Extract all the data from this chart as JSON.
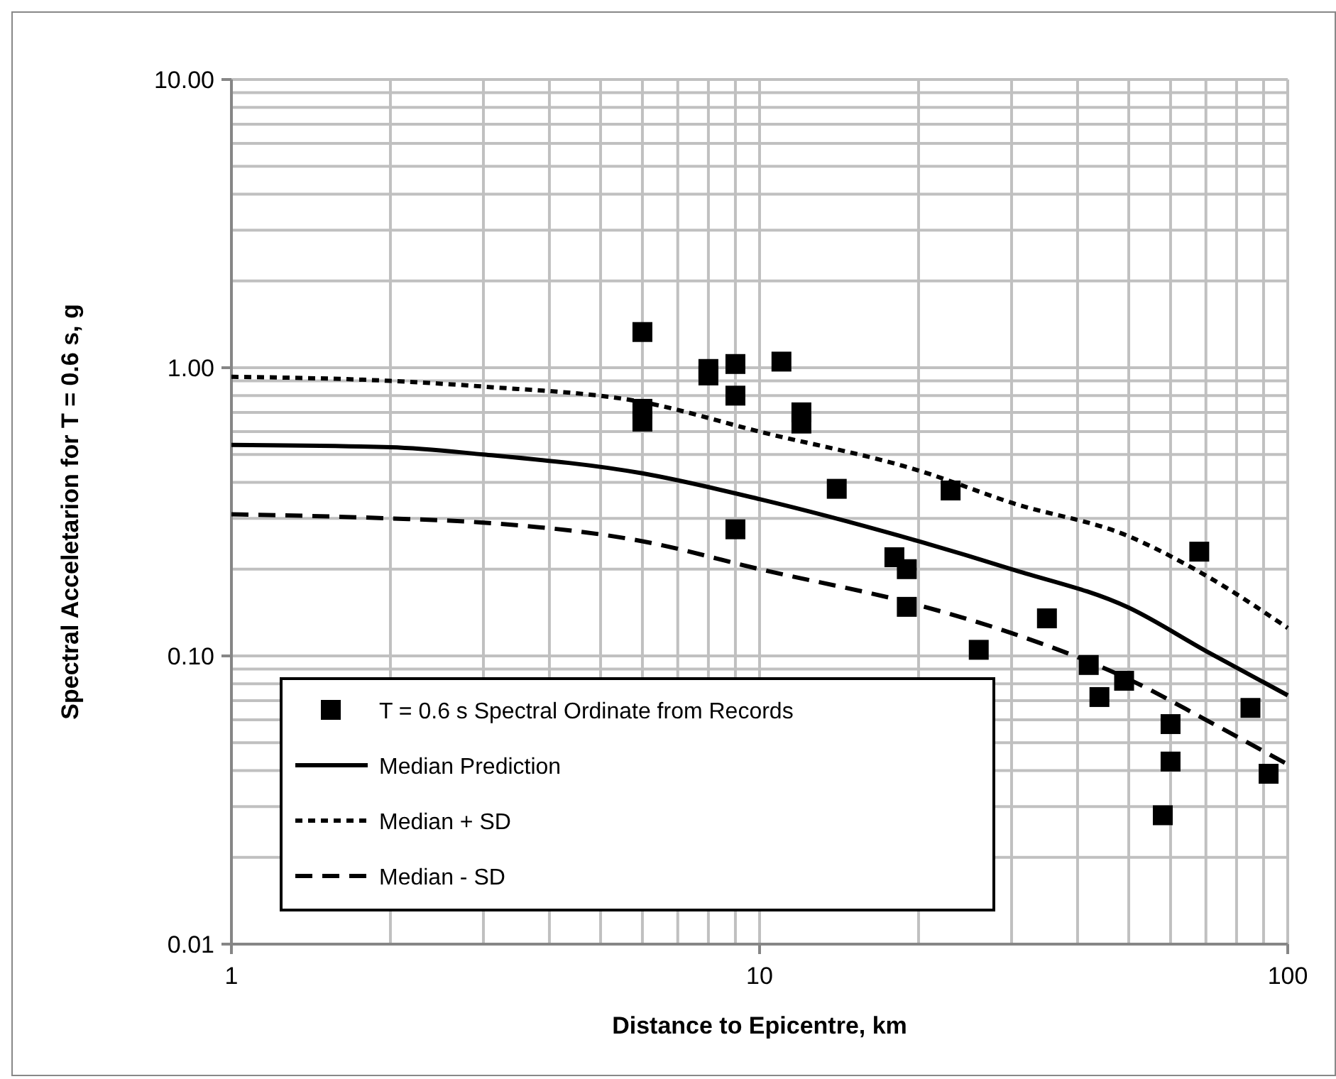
{
  "chart_data": {
    "type": "scatter",
    "xlabel": "Distance to Epicentre, km",
    "ylabel": "Spectral Acceletarion for T = 0.6 s, g",
    "log": "xy",
    "grid": true,
    "legend": "bottom left",
    "xlim": [
      1,
      100
    ],
    "ylim": [
      0.01,
      10
    ],
    "xticks": [
      1,
      10,
      100
    ],
    "yticks": [
      {
        "value": 0.01,
        "label": "0.01"
      },
      {
        "value": 0.1,
        "label": "0.10"
      },
      {
        "value": 1,
        "label": "1.00"
      },
      {
        "value": 10,
        "label": "10.00"
      }
    ],
    "series": [
      {
        "name": "T = 0.6 s Spectral Ordinate from Records",
        "marker": "square",
        "color": "#000000",
        "x": [
          6,
          6,
          6,
          8,
          8,
          9,
          9,
          9,
          11,
          12,
          12,
          14,
          18,
          19,
          19,
          23,
          26,
          35,
          42,
          44,
          49,
          58,
          60,
          60,
          68,
          85,
          92
        ],
        "values": [
          1.33,
          0.72,
          0.65,
          0.99,
          0.94,
          1.03,
          0.8,
          0.275,
          1.05,
          0.7,
          0.64,
          0.38,
          0.22,
          0.2,
          0.148,
          0.375,
          0.105,
          0.135,
          0.093,
          0.072,
          0.082,
          0.028,
          0.058,
          0.043,
          0.23,
          0.066,
          0.039
        ]
      },
      {
        "name": "Median Prediction",
        "type": "line",
        "line_style": "solid",
        "color": "#000000",
        "x": [
          1,
          2,
          3,
          6,
          10,
          20,
          30,
          50,
          70,
          100
        ],
        "values": [
          0.54,
          0.53,
          0.5,
          0.43,
          0.35,
          0.25,
          0.2,
          0.147,
          0.104,
          0.073
        ]
      },
      {
        "name": "Median + SD",
        "type": "line",
        "line_style": "dotted",
        "color": "#000000",
        "x": [
          1,
          2,
          3,
          6,
          10,
          20,
          30,
          50,
          70,
          100
        ],
        "values": [
          0.93,
          0.9,
          0.86,
          0.76,
          0.6,
          0.44,
          0.34,
          0.26,
          0.19,
          0.125
        ]
      },
      {
        "name": "Median - SD",
        "type": "line",
        "line_style": "dashed",
        "color": "#000000",
        "x": [
          1,
          2,
          3,
          6,
          10,
          20,
          30,
          50,
          70,
          100
        ],
        "values": [
          0.31,
          0.3,
          0.29,
          0.25,
          0.2,
          0.15,
          0.12,
          0.083,
          0.06,
          0.042
        ]
      }
    ]
  }
}
